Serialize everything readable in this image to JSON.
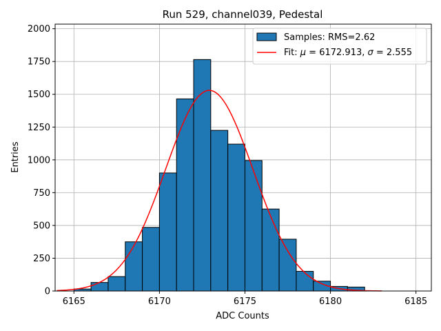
{
  "chart_data": {
    "type": "bar",
    "title": "Run 529, channel039, Pedestal",
    "xlabel": "ADC Counts",
    "ylabel": "Entries",
    "xlim": [
      6163.9,
      6185.9
    ],
    "ylim": [
      0,
      2035
    ],
    "x_ticks": [
      6165,
      6170,
      6175,
      6180,
      6185
    ],
    "y_ticks": [
      0,
      250,
      500,
      750,
      1000,
      1250,
      1500,
      1750,
      2000
    ],
    "x_tick_labels": [
      "6165",
      "6170",
      "6175",
      "6180",
      "6185"
    ],
    "y_tick_labels": [
      "0",
      "250",
      "500",
      "750",
      "1000",
      "1250",
      "1500",
      "1750",
      "2000"
    ],
    "grid": true,
    "legend_position": "top-right",
    "colors": {
      "bars": "#1f77b4",
      "fit": "#ff0000",
      "edge": "#000000"
    },
    "series": [
      {
        "name": "Samples: RMS=2.62",
        "kind": "histogram",
        "bin_edges": [
          6165,
          6166,
          6167,
          6168,
          6169,
          6170,
          6171,
          6172,
          6173,
          6174,
          6175,
          6176,
          6177,
          6178,
          6179,
          6180,
          6181,
          6182
        ],
        "values": [
          15,
          65,
          110,
          375,
          485,
          900,
          1465,
          1765,
          1225,
          1120,
          995,
          625,
          395,
          150,
          75,
          35,
          30
        ]
      },
      {
        "name_prefix": "Fit: ",
        "name_mu_symbol": "μ",
        "name_mu_text": " = 6172.913, ",
        "name_sigma_symbol": "σ",
        "name_sigma_text": " = 2.555",
        "kind": "gaussian",
        "mu": 6172.913,
        "sigma": 2.555,
        "amplitude": 1530,
        "x_range": [
          6164,
          6183
        ]
      }
    ]
  }
}
